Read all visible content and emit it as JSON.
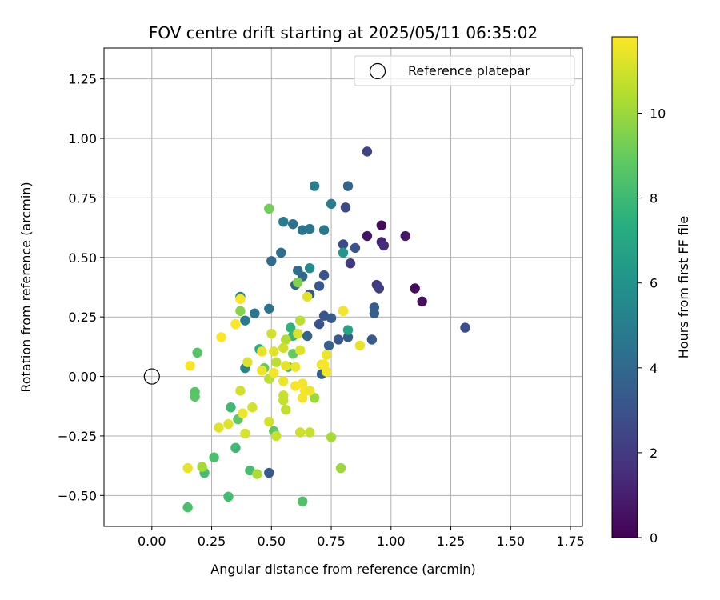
{
  "chart_data": {
    "type": "scatter",
    "title": "FOV centre drift starting at 2025/05/11 06:35:02",
    "xlabel": "Angular distance from reference (arcmin)",
    "ylabel": "Rotation from reference (arcmin)",
    "xlim": [
      -0.2,
      1.8
    ],
    "ylim": [
      -0.63,
      1.38
    ],
    "xticks": [
      0.0,
      0.25,
      0.5,
      0.75,
      1.0,
      1.25,
      1.5,
      1.75
    ],
    "yticks": [
      -0.5,
      -0.25,
      0.0,
      0.25,
      0.5,
      0.75,
      1.0,
      1.25
    ],
    "xtick_labels": [
      "0.00",
      "0.25",
      "0.50",
      "0.75",
      "1.00",
      "1.25",
      "1.50",
      "1.75"
    ],
    "ytick_labels": [
      "−0.50",
      "−0.25",
      "0.00",
      "0.25",
      "0.50",
      "0.75",
      "1.00",
      "1.25"
    ],
    "grid": true,
    "legend": {
      "position": "top-right",
      "entries": [
        "Reference platepar"
      ]
    },
    "reference_point": {
      "x": 0.0,
      "y": 0.0
    },
    "colorbar": {
      "label": "Hours from first FF file",
      "range": [
        0,
        11.8
      ],
      "ticks": [
        0,
        2,
        4,
        6,
        8,
        10
      ],
      "tick_labels": [
        "0",
        "2",
        "4",
        "6",
        "8",
        "10"
      ],
      "colormap": "viridis"
    },
    "points": [
      {
        "x": 0.96,
        "y": 0.635,
        "c": 0.3
      },
      {
        "x": 1.1,
        "y": 0.37,
        "c": 0.4
      },
      {
        "x": 1.13,
        "y": 0.315,
        "c": 0.5
      },
      {
        "x": 0.9,
        "y": 0.59,
        "c": 0.7
      },
      {
        "x": 1.06,
        "y": 0.59,
        "c": 0.8
      },
      {
        "x": 0.96,
        "y": 0.565,
        "c": 1.2
      },
      {
        "x": 0.97,
        "y": 0.55,
        "c": 1.5
      },
      {
        "x": 0.83,
        "y": 0.475,
        "c": 2.0
      },
      {
        "x": 0.94,
        "y": 0.385,
        "c": 2.0
      },
      {
        "x": 0.95,
        "y": 0.37,
        "c": 2.2
      },
      {
        "x": 1.31,
        "y": 0.205,
        "c": 2.8
      },
      {
        "x": 0.9,
        "y": 0.945,
        "c": 2.4
      },
      {
        "x": 0.81,
        "y": 0.71,
        "c": 2.6
      },
      {
        "x": 0.8,
        "y": 0.555,
        "c": 2.8
      },
      {
        "x": 0.85,
        "y": 0.54,
        "c": 3.0
      },
      {
        "x": 0.72,
        "y": 0.425,
        "c": 3.0
      },
      {
        "x": 0.7,
        "y": 0.38,
        "c": 3.2
      },
      {
        "x": 0.72,
        "y": 0.255,
        "c": 3.1
      },
      {
        "x": 0.75,
        "y": 0.245,
        "c": 3.3
      },
      {
        "x": 0.7,
        "y": 0.22,
        "c": 3.0
      },
      {
        "x": 0.78,
        "y": 0.155,
        "c": 3.2
      },
      {
        "x": 0.82,
        "y": 0.165,
        "c": 3.4
      },
      {
        "x": 0.92,
        "y": 0.155,
        "c": 3.3
      },
      {
        "x": 0.93,
        "y": 0.29,
        "c": 3.5
      },
      {
        "x": 0.93,
        "y": 0.265,
        "c": 3.6
      },
      {
        "x": 0.74,
        "y": 0.13,
        "c": 3.6
      },
      {
        "x": 0.66,
        "y": 0.345,
        "c": 3.2
      },
      {
        "x": 0.82,
        "y": 0.8,
        "c": 3.8
      },
      {
        "x": 0.49,
        "y": -0.405,
        "c": 3.3
      },
      {
        "x": 0.71,
        "y": 0.01,
        "c": 3.6
      },
      {
        "x": 0.65,
        "y": 0.17,
        "c": 3.8
      },
      {
        "x": 0.6,
        "y": 0.385,
        "c": 3.9
      },
      {
        "x": 0.63,
        "y": 0.42,
        "c": 4.0
      },
      {
        "x": 0.61,
        "y": 0.445,
        "c": 4.1
      },
      {
        "x": 0.5,
        "y": 0.485,
        "c": 4.2
      },
      {
        "x": 0.54,
        "y": 0.52,
        "c": 4.3
      },
      {
        "x": 0.59,
        "y": 0.64,
        "c": 4.4
      },
      {
        "x": 0.63,
        "y": 0.615,
        "c": 4.5
      },
      {
        "x": 0.66,
        "y": 0.62,
        "c": 4.6
      },
      {
        "x": 0.72,
        "y": 0.615,
        "c": 4.7
      },
      {
        "x": 0.55,
        "y": 0.65,
        "c": 4.8
      },
      {
        "x": 0.75,
        "y": 0.725,
        "c": 5.0
      },
      {
        "x": 0.68,
        "y": 0.8,
        "c": 5.0
      },
      {
        "x": 0.49,
        "y": 0.285,
        "c": 4.4
      },
      {
        "x": 0.43,
        "y": 0.265,
        "c": 4.6
      },
      {
        "x": 0.39,
        "y": 0.235,
        "c": 4.8
      },
      {
        "x": 0.37,
        "y": 0.335,
        "c": 5.2
      },
      {
        "x": 0.39,
        "y": 0.035,
        "c": 5.4
      },
      {
        "x": 0.66,
        "y": 0.455,
        "c": 5.6
      },
      {
        "x": 0.8,
        "y": 0.52,
        "c": 6.2
      },
      {
        "x": 0.82,
        "y": 0.195,
        "c": 6.8
      },
      {
        "x": 0.45,
        "y": 0.115,
        "c": 7.4
      },
      {
        "x": 0.58,
        "y": 0.205,
        "c": 7.6
      },
      {
        "x": 0.59,
        "y": 0.17,
        "c": 7.8
      },
      {
        "x": 0.57,
        "y": 0.04,
        "c": 7.8
      },
      {
        "x": 0.33,
        "y": -0.13,
        "c": 8.0
      },
      {
        "x": 0.35,
        "y": -0.3,
        "c": 8.0
      },
      {
        "x": 0.32,
        "y": -0.505,
        "c": 8.1
      },
      {
        "x": 0.41,
        "y": -0.395,
        "c": 8.2
      },
      {
        "x": 0.22,
        "y": -0.405,
        "c": 8.2
      },
      {
        "x": 0.15,
        "y": -0.55,
        "c": 8.3
      },
      {
        "x": 0.63,
        "y": -0.525,
        "c": 8.4
      },
      {
        "x": 0.26,
        "y": -0.34,
        "c": 8.3
      },
      {
        "x": 0.18,
        "y": -0.065,
        "c": 8.6
      },
      {
        "x": 0.18,
        "y": -0.085,
        "c": 8.7
      },
      {
        "x": 0.19,
        "y": 0.1,
        "c": 8.6
      },
      {
        "x": 0.36,
        "y": -0.18,
        "c": 8.8
      },
      {
        "x": 0.51,
        "y": -0.23,
        "c": 8.8
      },
      {
        "x": 0.59,
        "y": 0.095,
        "c": 8.9
      },
      {
        "x": 0.47,
        "y": 0.035,
        "c": 9.0
      },
      {
        "x": 0.49,
        "y": 0.705,
        "c": 9.2
      },
      {
        "x": 0.61,
        "y": 0.395,
        "c": 9.5
      },
      {
        "x": 0.37,
        "y": 0.275,
        "c": 9.6
      },
      {
        "x": 0.8,
        "y": 0.275,
        "c": 9.8
      },
      {
        "x": 0.68,
        "y": -0.09,
        "c": 10.0
      },
      {
        "x": 0.79,
        "y": -0.385,
        "c": 10.0
      },
      {
        "x": 0.75,
        "y": -0.255,
        "c": 10.2
      },
      {
        "x": 0.21,
        "y": -0.38,
        "c": 10.2
      },
      {
        "x": 0.44,
        "y": -0.41,
        "c": 10.3
      },
      {
        "x": 0.56,
        "y": 0.155,
        "c": 10.4
      },
      {
        "x": 0.62,
        "y": 0.235,
        "c": 10.6
      },
      {
        "x": 0.52,
        "y": 0.06,
        "c": 10.6
      },
      {
        "x": 0.49,
        "y": -0.01,
        "c": 10.6
      },
      {
        "x": 0.55,
        "y": -0.08,
        "c": 10.8
      },
      {
        "x": 0.55,
        "y": -0.1,
        "c": 10.8
      },
      {
        "x": 0.56,
        "y": -0.14,
        "c": 10.7
      },
      {
        "x": 0.66,
        "y": -0.235,
        "c": 10.8
      },
      {
        "x": 0.62,
        "y": -0.235,
        "c": 10.9
      },
      {
        "x": 0.52,
        "y": -0.25,
        "c": 10.8
      },
      {
        "x": 0.49,
        "y": -0.19,
        "c": 11.0
      },
      {
        "x": 0.42,
        "y": -0.13,
        "c": 11.0
      },
      {
        "x": 0.39,
        "y": -0.24,
        "c": 11.1
      },
      {
        "x": 0.32,
        "y": -0.2,
        "c": 11.2
      },
      {
        "x": 0.28,
        "y": -0.215,
        "c": 11.3
      },
      {
        "x": 0.15,
        "y": -0.385,
        "c": 11.4
      },
      {
        "x": 0.37,
        "y": -0.06,
        "c": 11.0
      },
      {
        "x": 0.38,
        "y": -0.155,
        "c": 11.5
      },
      {
        "x": 0.55,
        "y": 0.12,
        "c": 10.9
      },
      {
        "x": 0.5,
        "y": 0.18,
        "c": 11.0
      },
      {
        "x": 0.61,
        "y": 0.18,
        "c": 11.1
      },
      {
        "x": 0.62,
        "y": 0.11,
        "c": 11.2
      },
      {
        "x": 0.51,
        "y": 0.105,
        "c": 11.3
      },
      {
        "x": 0.46,
        "y": 0.105,
        "c": 11.4
      },
      {
        "x": 0.4,
        "y": 0.06,
        "c": 11.2
      },
      {
        "x": 0.46,
        "y": 0.025,
        "c": 11.5
      },
      {
        "x": 0.51,
        "y": 0.015,
        "c": 11.6
      },
      {
        "x": 0.56,
        "y": 0.045,
        "c": 11.4
      },
      {
        "x": 0.6,
        "y": 0.04,
        "c": 11.5
      },
      {
        "x": 0.65,
        "y": 0.335,
        "c": 11.3
      },
      {
        "x": 0.55,
        "y": -0.02,
        "c": 11.5
      },
      {
        "x": 0.63,
        "y": -0.03,
        "c": 11.6
      },
      {
        "x": 0.64,
        "y": -0.06,
        "c": 11.7
      },
      {
        "x": 0.66,
        "y": -0.06,
        "c": 11.5
      },
      {
        "x": 0.63,
        "y": -0.09,
        "c": 11.6
      },
      {
        "x": 0.6,
        "y": -0.04,
        "c": 11.7
      },
      {
        "x": 0.71,
        "y": 0.05,
        "c": 11.4
      },
      {
        "x": 0.73,
        "y": 0.09,
        "c": 11.5
      },
      {
        "x": 0.73,
        "y": 0.02,
        "c": 11.6
      },
      {
        "x": 0.72,
        "y": 0.05,
        "c": 11.7
      },
      {
        "x": 0.8,
        "y": 0.275,
        "c": 11.6
      },
      {
        "x": 0.87,
        "y": 0.13,
        "c": 11.4
      },
      {
        "x": 0.37,
        "y": 0.325,
        "c": 11.7
      },
      {
        "x": 0.35,
        "y": 0.22,
        "c": 11.8
      },
      {
        "x": 0.29,
        "y": 0.165,
        "c": 11.8
      },
      {
        "x": 0.16,
        "y": 0.045,
        "c": 11.7
      }
    ]
  }
}
